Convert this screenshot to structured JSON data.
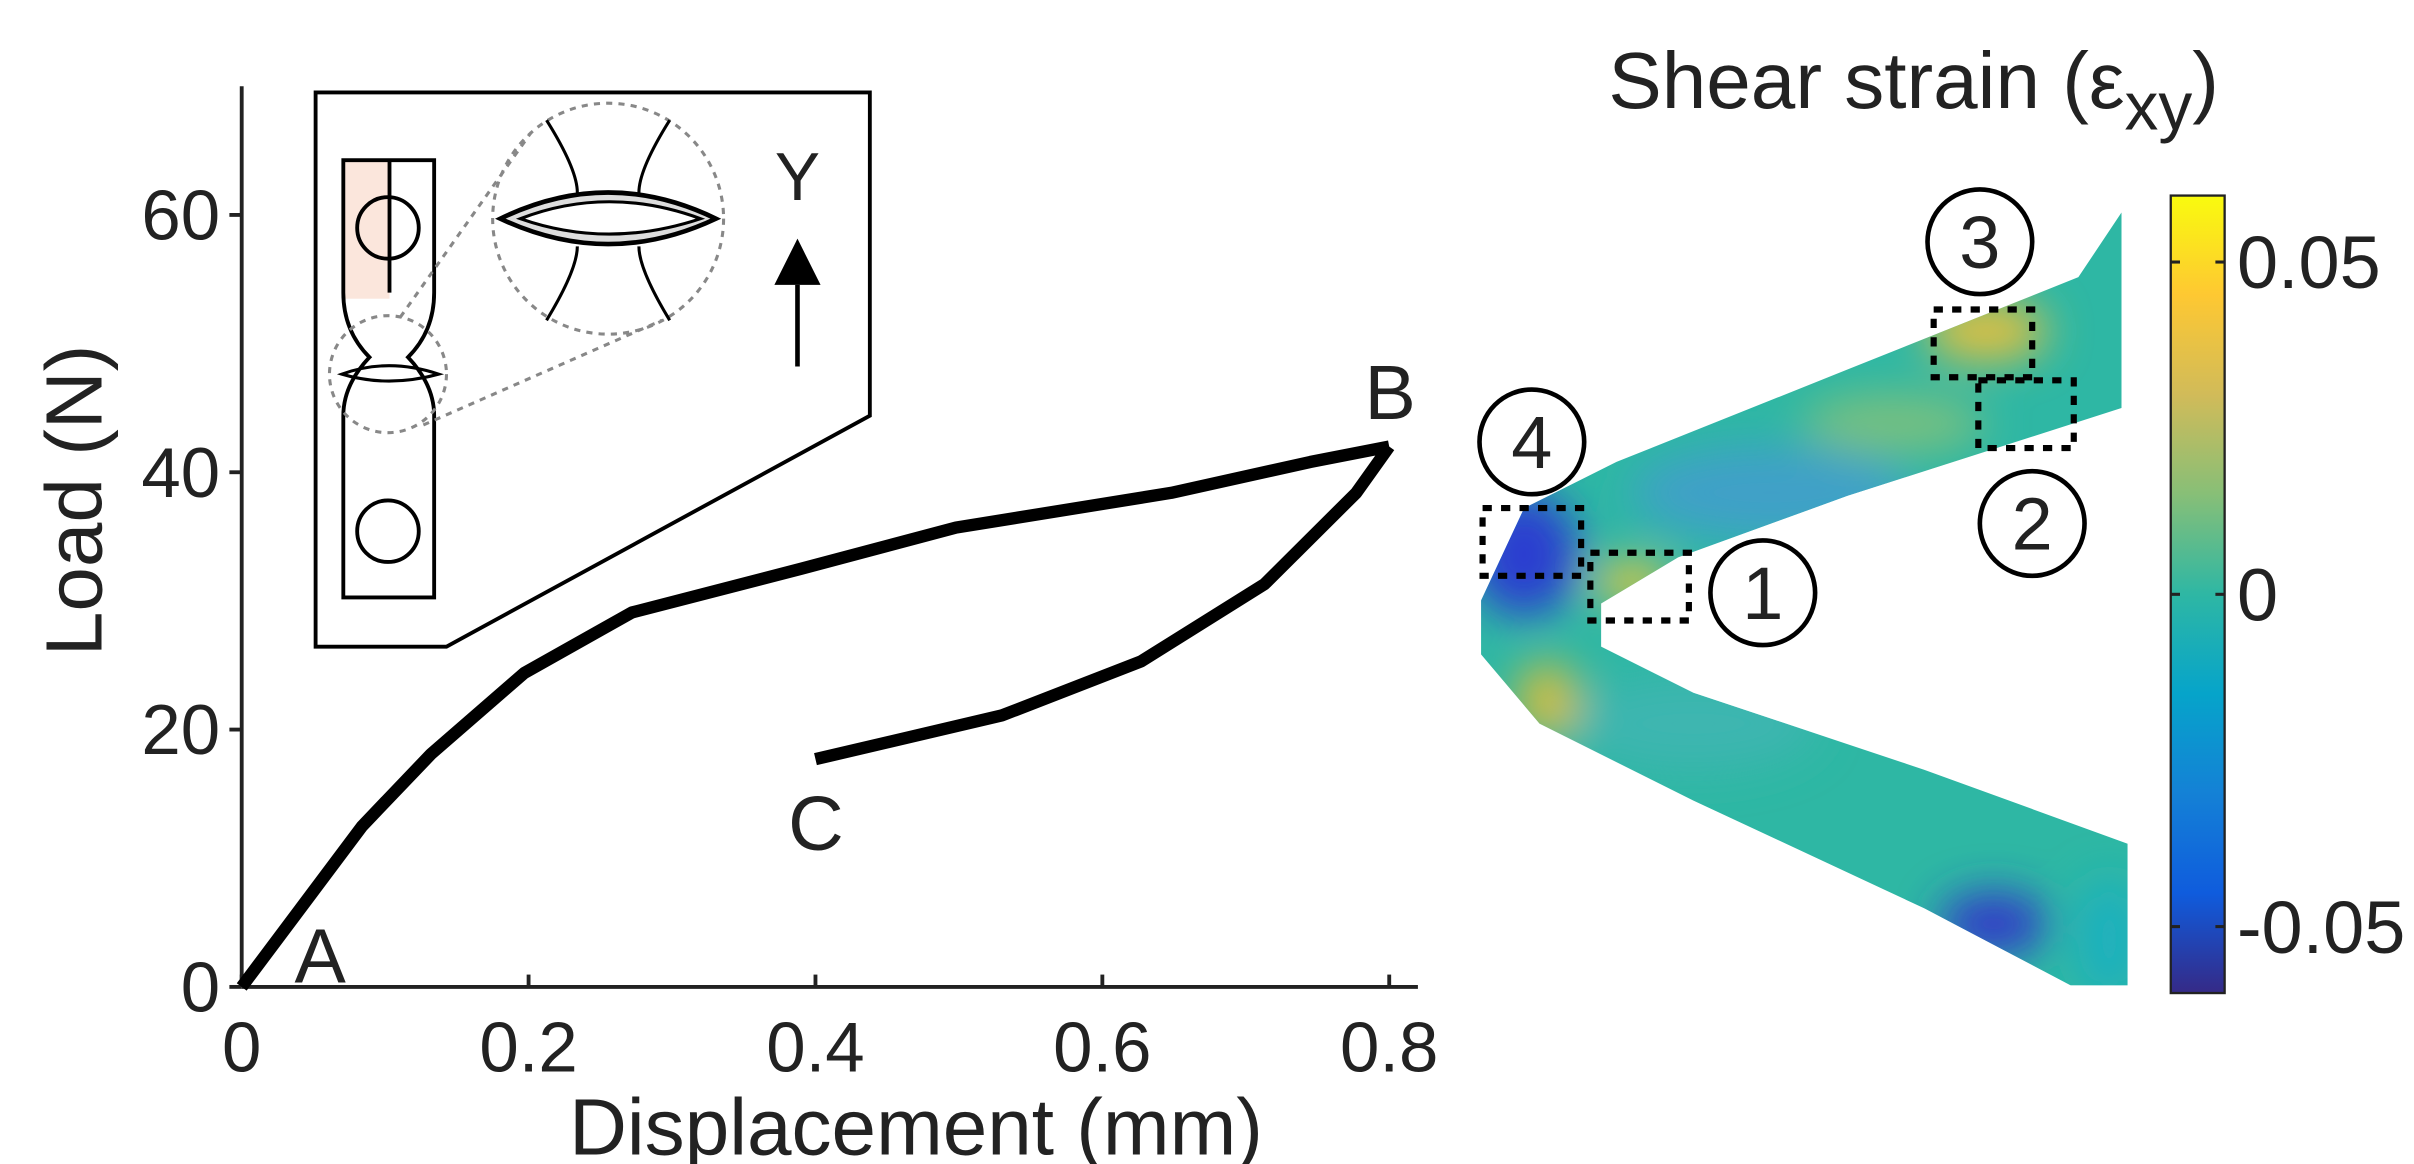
{
  "chart_data": [
    {
      "type": "line",
      "x_label": "Displacement (mm)",
      "y_label": "Load (N)",
      "xlim": [
        0,
        0.82
      ],
      "xticks": [
        0,
        0.2,
        0.4,
        0.6,
        0.8
      ],
      "ylim": [
        0,
        70
      ],
      "yticks": [
        0,
        20,
        40,
        60
      ],
      "series": [
        {
          "color": "#000000",
          "x": [
            0,
            0.084,
            0.132,
            0.197,
            0.272,
            0.39,
            0.498,
            0.648,
            0.745,
            0.8
          ],
          "values": [
            0,
            12.5,
            18.1,
            24.4,
            29.1,
            32.5,
            35.7,
            38.4,
            40.8,
            42.0
          ]
        },
        {
          "color": "#000000",
          "x": [
            0.8,
            0.777,
            0.713,
            0.627,
            0.53,
            0.4
          ],
          "values": [
            42.0,
            38.4,
            31.3,
            25.3,
            21.1,
            17.7
          ]
        }
      ],
      "annotations": [
        "A",
        "B",
        "C"
      ],
      "inset_label": "Y"
    },
    {
      "type": "colorbar",
      "title_parts": [
        "Shear strain (ε",
        "xy",
        ")"
      ],
      "clim": [
        -0.06,
        0.06
      ],
      "cticks": [
        0.05,
        0,
        -0.05
      ],
      "colors": [
        "#352a87",
        "#0f5cdd",
        "#1481d6",
        "#06a4ca",
        "#2eb7a4",
        "#87bf77",
        "#d1bb59",
        "#fec832",
        "#f9fb0e"
      ],
      "regions": [
        "1",
        "2",
        "3",
        "4"
      ]
    }
  ]
}
